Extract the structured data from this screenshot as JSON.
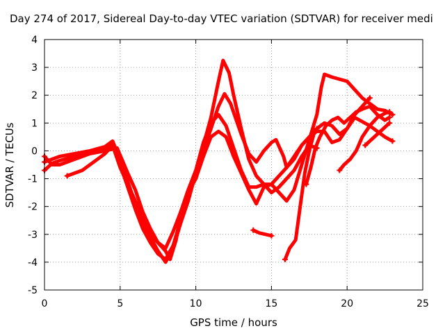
{
  "chart_data": {
    "type": "scatter",
    "title": "Day 274 of 2017, Sidereal Day-to-day VTEC variation (SDTVAR) for receiver medi",
    "xlabel": "GPS time / hours",
    "ylabel": "SDTVAR / TECUs",
    "xlim": [
      0,
      25
    ],
    "ylim": [
      -5,
      4
    ],
    "xticks": [
      0,
      5,
      10,
      15,
      20,
      25
    ],
    "yticks": [
      -5,
      -4,
      -3,
      -2,
      -1,
      0,
      1,
      2,
      3,
      4
    ],
    "grid": true,
    "legend": "none",
    "marker": "plus",
    "color": "#ff0000",
    "series": [
      {
        "values": [
          [
            0.0,
            -0.4
          ],
          [
            0.5,
            -0.3
          ],
          [
            1.0,
            -0.2
          ],
          [
            2.0,
            -0.1
          ],
          [
            3.0,
            0.0
          ],
          [
            4.0,
            0.15
          ],
          [
            4.5,
            0.35
          ],
          [
            5.0,
            -0.3
          ],
          [
            5.5,
            -1.1
          ],
          [
            6.0,
            -1.9
          ],
          [
            6.5,
            -2.6
          ],
          [
            7.0,
            -3.1
          ],
          [
            7.5,
            -3.6
          ],
          [
            8.0,
            -4.0
          ],
          [
            8.5,
            -3.5
          ],
          [
            9.0,
            -2.6
          ],
          [
            9.5,
            -1.8
          ],
          [
            10.0,
            -0.8
          ],
          [
            10.5,
            0.2
          ],
          [
            11.0,
            1.2
          ],
          [
            11.5,
            2.5
          ],
          [
            11.8,
            3.25
          ],
          [
            12.2,
            2.8
          ],
          [
            12.5,
            2.0
          ],
          [
            13.0,
            0.8
          ],
          [
            13.5,
            -0.3
          ],
          [
            14.0,
            -0.9
          ],
          [
            14.5,
            -1.2
          ],
          [
            15.0,
            -1.2
          ],
          [
            15.5,
            -1.5
          ],
          [
            16.0,
            -1.8
          ],
          [
            16.5,
            -1.4
          ],
          [
            17.0,
            -0.5
          ],
          [
            17.5,
            0.4
          ],
          [
            18.0,
            1.3
          ],
          [
            18.3,
            2.3
          ],
          [
            18.5,
            2.75
          ],
          [
            19.0,
            2.65
          ],
          [
            20.0,
            2.5
          ],
          [
            21.0,
            1.9
          ],
          [
            21.5,
            1.7
          ],
          [
            22.0,
            1.5
          ],
          [
            22.5,
            1.45
          ],
          [
            23.0,
            1.3
          ]
        ]
      },
      {
        "values": [
          [
            0.0,
            -0.7
          ],
          [
            0.5,
            -0.45
          ],
          [
            1.0,
            -0.35
          ],
          [
            2.0,
            -0.2
          ],
          [
            3.0,
            -0.05
          ],
          [
            4.0,
            0.1
          ],
          [
            4.5,
            0.2
          ],
          [
            5.0,
            -0.5
          ],
          [
            5.5,
            -1.3
          ],
          [
            6.0,
            -2.1
          ],
          [
            6.5,
            -2.8
          ],
          [
            7.0,
            -3.3
          ],
          [
            7.5,
            -3.7
          ],
          [
            8.0,
            -3.9
          ],
          [
            8.5,
            -3.4
          ],
          [
            9.0,
            -2.5
          ],
          [
            9.5,
            -1.6
          ],
          [
            10.0,
            -0.9
          ],
          [
            10.5,
            0.0
          ],
          [
            11.0,
            0.8
          ],
          [
            11.5,
            1.6
          ],
          [
            11.9,
            2.05
          ],
          [
            12.3,
            1.7
          ],
          [
            13.0,
            0.6
          ],
          [
            13.5,
            -0.1
          ],
          [
            14.0,
            -0.4
          ],
          [
            14.5,
            0.0
          ],
          [
            15.0,
            0.3
          ],
          [
            15.3,
            0.4
          ],
          [
            15.8,
            -0.2
          ],
          [
            16.0,
            -0.6
          ],
          [
            16.5,
            -0.3
          ],
          [
            17.0,
            0.2
          ],
          [
            17.5,
            0.5
          ],
          [
            18.0,
            0.8
          ],
          [
            18.5,
            1.0
          ],
          [
            19.0,
            0.9
          ],
          [
            19.5,
            0.6
          ],
          [
            20.0,
            0.8
          ],
          [
            20.5,
            1.2
          ],
          [
            21.0,
            1.05
          ],
          [
            21.5,
            0.9
          ],
          [
            22.0,
            0.7
          ],
          [
            22.5,
            0.5
          ],
          [
            23.0,
            0.35
          ]
        ]
      },
      {
        "values": [
          [
            0.0,
            -0.2
          ],
          [
            0.5,
            -0.5
          ],
          [
            1.0,
            -0.5
          ],
          [
            2.0,
            -0.3
          ],
          [
            3.0,
            -0.1
          ],
          [
            4.0,
            0.0
          ],
          [
            4.8,
            0.1
          ],
          [
            5.5,
            -0.8
          ],
          [
            6.0,
            -1.4
          ],
          [
            6.5,
            -2.2
          ],
          [
            7.0,
            -2.8
          ],
          [
            7.5,
            -3.3
          ],
          [
            8.0,
            -3.6
          ],
          [
            8.3,
            -3.9
          ],
          [
            8.7,
            -3.2
          ],
          [
            9.0,
            -2.2
          ],
          [
            9.5,
            -1.5
          ],
          [
            10.0,
            -1.0
          ],
          [
            10.5,
            -0.2
          ],
          [
            11.0,
            0.5
          ],
          [
            11.5,
            0.7
          ],
          [
            12.0,
            0.5
          ],
          [
            12.5,
            -0.2
          ],
          [
            13.0,
            -0.8
          ],
          [
            13.5,
            -1.4
          ],
          [
            14.0,
            -1.9
          ],
          [
            14.5,
            -1.3
          ],
          [
            15.0,
            -1.2
          ],
          [
            15.5,
            -0.9
          ],
          [
            16.0,
            -0.6
          ],
          [
            16.5,
            -0.2
          ],
          [
            17.0,
            0.2
          ],
          [
            17.5,
            0.5
          ],
          [
            18.0,
            0.7
          ],
          [
            18.5,
            0.7
          ],
          [
            19.0,
            0.3
          ],
          [
            19.5,
            0.4
          ],
          [
            20.0,
            0.8
          ],
          [
            20.5,
            1.3
          ],
          [
            21.0,
            1.6
          ],
          [
            21.5,
            1.9
          ]
        ]
      },
      {
        "values": [
          [
            1.5,
            -0.9
          ],
          [
            2.0,
            -0.8
          ],
          [
            2.5,
            -0.7
          ],
          [
            3.0,
            -0.5
          ],
          [
            3.5,
            -0.3
          ],
          [
            4.0,
            -0.1
          ],
          [
            4.5,
            0.2
          ],
          [
            5.0,
            -0.6
          ],
          [
            5.5,
            -1.2
          ],
          [
            6.0,
            -1.8
          ],
          [
            6.5,
            -2.4
          ],
          [
            7.0,
            -3.0
          ],
          [
            7.5,
            -3.3
          ],
          [
            8.0,
            -3.5
          ],
          [
            8.5,
            -2.9
          ],
          [
            9.0,
            -2.2
          ],
          [
            9.5,
            -1.4
          ],
          [
            10.0,
            -0.7
          ],
          [
            10.5,
            0.3
          ],
          [
            11.0,
            1.0
          ],
          [
            11.5,
            1.3
          ],
          [
            12.0,
            0.9
          ],
          [
            12.5,
            0.1
          ],
          [
            13.0,
            -0.7
          ],
          [
            13.5,
            -1.3
          ],
          [
            14.0,
            -1.3
          ],
          [
            14.5,
            -1.2
          ],
          [
            15.0,
            -1.5
          ],
          [
            15.5,
            -1.3
          ],
          [
            16.0,
            -1.0
          ],
          [
            16.5,
            -0.7
          ],
          [
            17.0,
            -0.2
          ],
          [
            17.5,
            0.2
          ],
          [
            18.0,
            0.1
          ]
        ]
      },
      {
        "values": [
          [
            13.8,
            -2.85
          ],
          [
            14.2,
            -2.95
          ],
          [
            14.6,
            -3.0
          ],
          [
            15.0,
            -3.05
          ]
        ]
      },
      {
        "values": [
          [
            15.9,
            -3.9
          ],
          [
            16.2,
            -3.5
          ],
          [
            16.6,
            -3.2
          ],
          [
            16.9,
            -2.0
          ],
          [
            17.2,
            -0.8
          ],
          [
            17.5,
            0.0
          ],
          [
            17.8,
            0.6
          ],
          [
            18.0,
            0.8
          ]
        ]
      },
      {
        "values": [
          [
            17.3,
            -1.2
          ],
          [
            17.6,
            -0.6
          ],
          [
            17.9,
            0.1
          ],
          [
            18.2,
            0.5
          ],
          [
            18.6,
            0.9
          ],
          [
            19.0,
            1.1
          ],
          [
            19.4,
            1.2
          ],
          [
            19.8,
            1.0
          ],
          [
            20.2,
            1.2
          ],
          [
            20.6,
            1.4
          ],
          [
            21.0,
            1.5
          ],
          [
            21.5,
            1.6
          ],
          [
            22.0,
            1.3
          ],
          [
            22.5,
            1.1
          ],
          [
            22.8,
            1.2
          ]
        ]
      },
      {
        "values": [
          [
            19.5,
            -0.7
          ],
          [
            19.8,
            -0.5
          ],
          [
            20.2,
            -0.3
          ],
          [
            20.6,
            0.0
          ],
          [
            21.0,
            0.5
          ],
          [
            21.5,
            0.9
          ],
          [
            22.0,
            1.2
          ],
          [
            22.5,
            1.35
          ],
          [
            22.8,
            1.4
          ]
        ]
      },
      {
        "values": [
          [
            21.2,
            0.2
          ],
          [
            21.6,
            0.4
          ],
          [
            22.0,
            0.6
          ],
          [
            22.4,
            0.8
          ],
          [
            22.8,
            1.0
          ]
        ]
      }
    ]
  }
}
